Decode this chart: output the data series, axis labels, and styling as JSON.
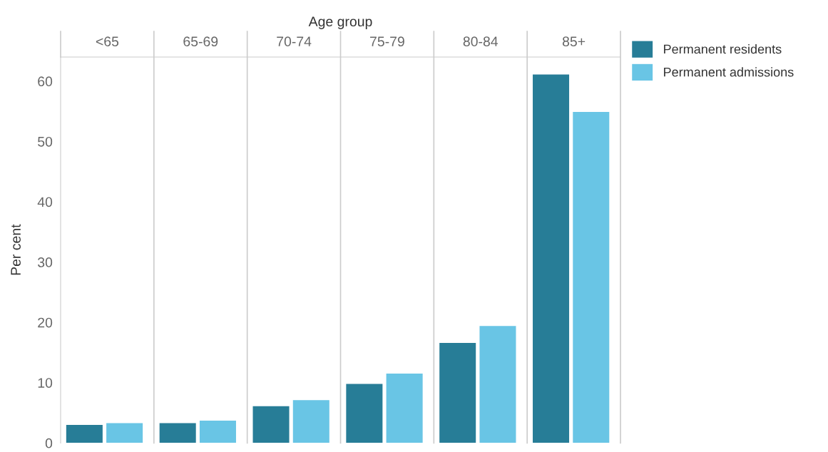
{
  "chart_data": {
    "type": "bar",
    "xlabel": "Age group",
    "ylabel": "Per cent",
    "categories": [
      "<65",
      "65-69",
      "70-74",
      "75-79",
      "80-84",
      "85+"
    ],
    "series": [
      {
        "name": "Permanent residents",
        "color": "#277d97",
        "values": [
          3.0,
          3.3,
          6.1,
          9.8,
          16.6,
          61.1
        ]
      },
      {
        "name": "Permanent admissions",
        "color": "#69c5e5",
        "values": [
          3.3,
          3.7,
          7.1,
          11.5,
          19.4,
          54.9
        ]
      }
    ],
    "ylim": [
      0,
      64
    ],
    "yticks": [
      0,
      10,
      20,
      30,
      40,
      50,
      60
    ],
    "grid": false,
    "legend": "top right"
  }
}
